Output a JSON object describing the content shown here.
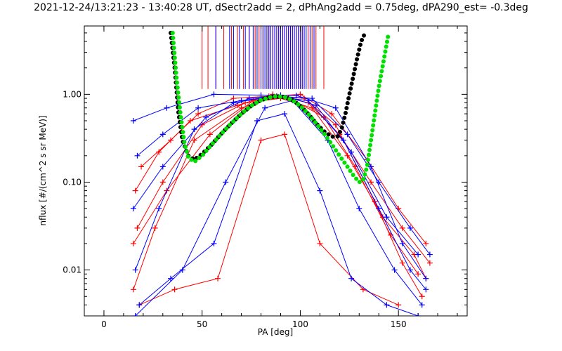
{
  "chart_data": {
    "type": "line",
    "title": "2021-12-24/13:21:23 - 13:40:28 UT, dSectr2add = 2, dPhAng2add = 0.75deg, dPA290_est=  -0.3deg",
    "xlabel": "PA [deg]",
    "ylabel": "nflux [#/(cm^2 s sr MeV)]",
    "xlim": [
      -10,
      185
    ],
    "ylim": [
      0.003,
      6
    ],
    "yscale": "log",
    "grid": false,
    "x_ticks": [
      {
        "value": 0,
        "label": "0"
      },
      {
        "value": 50,
        "label": "50"
      },
      {
        "value": 100,
        "label": "100"
      },
      {
        "value": 150,
        "label": "150"
      }
    ],
    "y_ticks": [
      {
        "value": 0.01,
        "label": "0.01"
      },
      {
        "value": 0.1,
        "label": "0.10"
      },
      {
        "value": 1,
        "label": "1.00"
      }
    ],
    "colors": {
      "red_traces": "#ff0000",
      "blue_traces": "#0000ff",
      "black_fit": "#000000",
      "green_fit": "#00e000"
    },
    "series": [
      {
        "color": "red",
        "values": [
          [
            [
              15,
              0.006
            ],
            [
              26,
              0.03
            ],
            [
              46,
              0.3
            ],
            [
              70,
              0.7
            ],
            [
              88,
              0.95
            ],
            [
              102,
              0.9
            ],
            [
              118,
              0.45
            ],
            [
              138,
              0.06
            ],
            [
              152,
              0.012
            ],
            [
              162,
              0.005
            ]
          ],
          [
            [
              17,
              0.03
            ],
            [
              30,
              0.1
            ],
            [
              50,
              0.45
            ],
            [
              72,
              0.8
            ],
            [
              90,
              0.9
            ],
            [
              106,
              0.7
            ],
            [
              124,
              0.2
            ],
            [
              142,
              0.04
            ],
            [
              158,
              0.015
            ],
            [
              164,
              0.008
            ]
          ],
          [
            [
              16,
              0.08
            ],
            [
              28,
              0.22
            ],
            [
              44,
              0.5
            ],
            [
              68,
              0.75
            ],
            [
              86,
              1.0
            ],
            [
              104,
              0.8
            ],
            [
              120,
              0.35
            ],
            [
              136,
              0.1
            ],
            [
              152,
              0.03
            ],
            [
              166,
              0.012
            ]
          ],
          [
            [
              18,
              0.004
            ],
            [
              36,
              0.006
            ],
            [
              58,
              0.008
            ],
            [
              80,
              0.3
            ],
            [
              92,
              0.35
            ],
            [
              110,
              0.02
            ],
            [
              132,
              0.006
            ],
            [
              150,
              0.004
            ]
          ],
          [
            [
              15,
              0.02
            ],
            [
              32,
              0.08
            ],
            [
              54,
              0.35
            ],
            [
              76,
              0.85
            ],
            [
              94,
              0.92
            ],
            [
              112,
              0.55
            ],
            [
              128,
              0.15
            ],
            [
              146,
              0.025
            ],
            [
              160,
              0.009
            ]
          ],
          [
            [
              19,
              0.15
            ],
            [
              34,
              0.3
            ],
            [
              48,
              0.6
            ],
            [
              66,
              0.9
            ],
            [
              84,
              0.95
            ],
            [
              100,
              1.0
            ],
            [
              116,
              0.6
            ],
            [
              134,
              0.18
            ],
            [
              150,
              0.05
            ],
            [
              164,
              0.02
            ]
          ]
        ]
      },
      {
        "color": "blue",
        "values": [
          [
            [
              16,
              0.01
            ],
            [
              28,
              0.05
            ],
            [
              46,
              0.4
            ],
            [
              66,
              0.8
            ],
            [
              86,
              0.95
            ],
            [
              104,
              0.85
            ],
            [
              122,
              0.3
            ],
            [
              140,
              0.05
            ],
            [
              156,
              0.01
            ],
            [
              164,
              0.006
            ]
          ],
          [
            [
              15,
              0.05
            ],
            [
              30,
              0.15
            ],
            [
              52,
              0.55
            ],
            [
              74,
              0.9
            ],
            [
              90,
              0.98
            ],
            [
              108,
              0.75
            ],
            [
              126,
              0.22
            ],
            [
              144,
              0.04
            ],
            [
              160,
              0.015
            ]
          ],
          [
            [
              17,
              0.2
            ],
            [
              30,
              0.35
            ],
            [
              48,
              0.7
            ],
            [
              70,
              0.85
            ],
            [
              88,
              0.95
            ],
            [
              106,
              0.9
            ],
            [
              124,
              0.35
            ],
            [
              140,
              0.1
            ],
            [
              156,
              0.03
            ],
            [
              166,
              0.015
            ]
          ],
          [
            [
              18,
              0.004
            ],
            [
              34,
              0.008
            ],
            [
              56,
              0.02
            ],
            [
              78,
              0.5
            ],
            [
              92,
              0.6
            ],
            [
              110,
              0.08
            ],
            [
              126,
              0.008
            ],
            [
              144,
              0.004
            ],
            [
              160,
              0.003
            ]
          ],
          [
            [
              16,
              0.003
            ],
            [
              40,
              0.01
            ],
            [
              62,
              0.1
            ],
            [
              82,
              0.7
            ],
            [
              96,
              0.85
            ],
            [
              114,
              0.3
            ],
            [
              130,
              0.05
            ],
            [
              148,
              0.01
            ],
            [
              162,
              0.004
            ]
          ],
          [
            [
              15,
              0.5
            ],
            [
              32,
              0.7
            ],
            [
              56,
              1.0
            ],
            [
              80,
              0.98
            ],
            [
              98,
              0.97
            ],
            [
              118,
              0.7
            ],
            [
              136,
              0.15
            ],
            [
              152,
              0.02
            ],
            [
              164,
              0.008
            ]
          ]
        ]
      }
    ],
    "fit_curves": [
      {
        "color": "black",
        "x": [
          34,
          36,
          38,
          40,
          43,
          46,
          50,
          55,
          60,
          65,
          70,
          75,
          80,
          85,
          88,
          92,
          96,
          100,
          104,
          108,
          112,
          116,
          119,
          121,
          123,
          125,
          127,
          129,
          131,
          133
        ],
        "y": [
          5.0,
          2.0,
          0.6,
          0.3,
          0.2,
          0.18,
          0.21,
          0.27,
          0.36,
          0.47,
          0.6,
          0.74,
          0.86,
          0.93,
          0.95,
          0.93,
          0.86,
          0.74,
          0.6,
          0.47,
          0.38,
          0.33,
          0.33,
          0.4,
          0.6,
          1.0,
          1.6,
          2.6,
          4.0,
          5.0
        ]
      },
      {
        "color": "green",
        "x": [
          35,
          37,
          39,
          41,
          43,
          46,
          50,
          55,
          60,
          65,
          70,
          75,
          80,
          85,
          88,
          92,
          96,
          100,
          104,
          108,
          112,
          116,
          120,
          124,
          127,
          130,
          132,
          134,
          136,
          138,
          140,
          143,
          145
        ],
        "y": [
          5.0,
          1.5,
          0.6,
          0.28,
          0.19,
          0.17,
          0.2,
          0.27,
          0.36,
          0.47,
          0.6,
          0.74,
          0.86,
          0.93,
          0.95,
          0.93,
          0.86,
          0.74,
          0.6,
          0.47,
          0.36,
          0.27,
          0.2,
          0.15,
          0.12,
          0.1,
          0.105,
          0.15,
          0.3,
          0.6,
          1.2,
          2.8,
          5.0
        ]
      }
    ],
    "vertical_markers": {
      "y_bottom": 1.15,
      "red_x": [
        50,
        53,
        57,
        61,
        65,
        68,
        71,
        74,
        77,
        79,
        81,
        83,
        84,
        85,
        86,
        87,
        88,
        89,
        90,
        91,
        92,
        93,
        94,
        95,
        96,
        97,
        98,
        99,
        100,
        101,
        102,
        104,
        106,
        108,
        112
      ],
      "blue_x": [
        57,
        64,
        66,
        69,
        72,
        74,
        76,
        78,
        80,
        81,
        82,
        83,
        84,
        85,
        86,
        87,
        88,
        89,
        90,
        91,
        92,
        93,
        94,
        95,
        96,
        97,
        98,
        99,
        100,
        101,
        102,
        103,
        105,
        107
      ]
    }
  }
}
